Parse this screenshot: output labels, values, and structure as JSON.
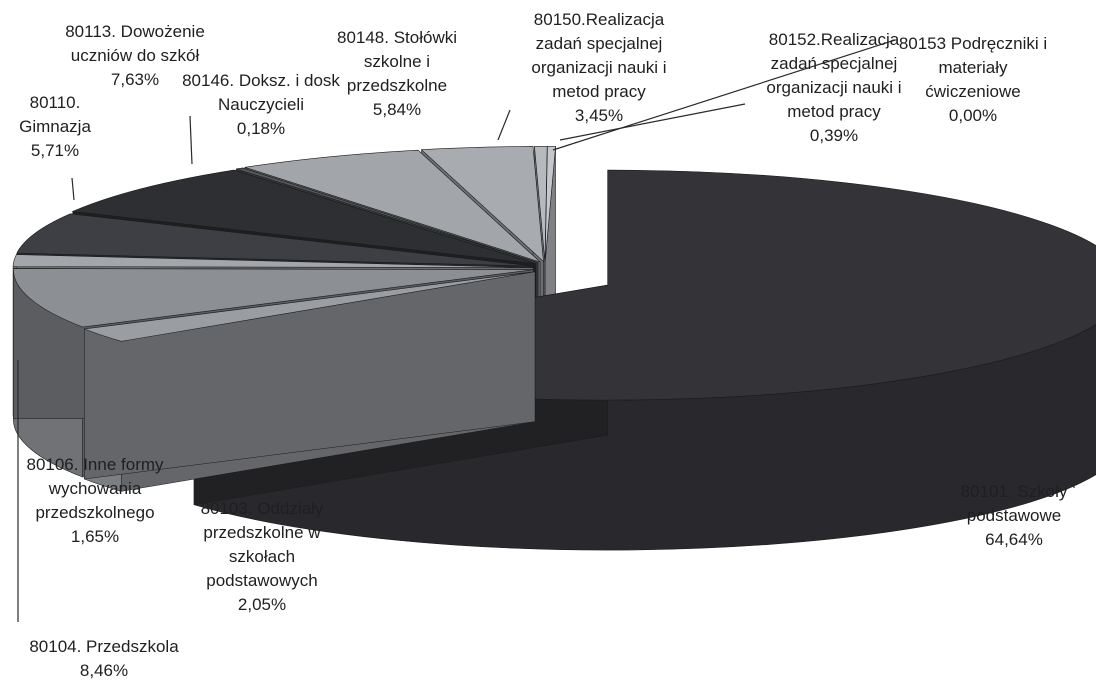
{
  "chart_data": {
    "type": "pie",
    "title": "",
    "slices": [
      {
        "label": "80101. Szkoły podstawowe",
        "value": 64.64,
        "value_text": "64,64%",
        "color": "#333338"
      },
      {
        "label": "80103. Oddziały przedszkolne w szkołach podstawowych",
        "value": 2.05,
        "value_text": "2,05%",
        "color": "#9a9da2"
      },
      {
        "label": "80104. Przedszkola",
        "value": 8.46,
        "value_text": "8,46%",
        "color": "#8c8f94"
      },
      {
        "label": "80106. Inne formy wychowania przedszkolnego",
        "value": 1.65,
        "value_text": "1,65%",
        "color": "#a3a6ab"
      },
      {
        "label": "80110. Gimnazja",
        "value": 5.71,
        "value_text": "5,71%",
        "color": "#3e3f44"
      },
      {
        "label": "80113. Dowożenie uczniów do szkół",
        "value": 7.63,
        "value_text": "7,63%",
        "color": "#2e2f33"
      },
      {
        "label": "80146. Doksz. i dosk. Nauczycieli",
        "value": 0.18,
        "value_text": "0,18%",
        "color": "#55575c"
      },
      {
        "label": "80148. Stołówki szkolne i przedszkolne",
        "value": 5.84,
        "value_text": "5,84%",
        "color": "#a2a5aa"
      },
      {
        "label": "80150.Realizacja zadań specjalnej organizacji nauki i metod pracy",
        "value": 3.45,
        "value_text": "3,45%",
        "color": "#a8abb0"
      },
      {
        "label": "80152.Realizacja zadań specjalnej organizacji nauki i metod pracy",
        "value": 0.39,
        "value_text": "0,39%",
        "color": "#b6b9be"
      },
      {
        "label": "80153 Podręczniki i materiały ćwiczeniowe",
        "value": 0.0,
        "value_text": "0,00%",
        "color": "#c4c7cc"
      }
    ],
    "label_lines": [
      [
        "80101. Szkoły",
        "podstawowe",
        "64,64%"
      ],
      [
        "80103. Oddziały",
        "przedszkolne w",
        "szkołach",
        "podstawowych",
        "2,05%"
      ],
      [
        "80104. Przedszkola",
        "8,46%"
      ],
      [
        "80106. Inne formy",
        "wychowania",
        "przedszkolnego",
        "1,65%"
      ],
      [
        "80110.",
        "Gimnazja",
        "5,71%"
      ],
      [
        "80113. Dowożenie",
        "uczniów do szkół",
        "7,63%"
      ],
      [
        "80146. Doksz. i dosk",
        "Nauczycieli",
        "0,18%"
      ],
      [
        "80148. Stołówki",
        "szkolne i",
        "przedszkolne",
        "5,84%"
      ],
      [
        "80150.Realizacja",
        "zadań specjalnej",
        "organizacji nauki i",
        "metod pracy",
        "3,45%"
      ],
      [
        "80152.Realizacja",
        "zadań specjalnej",
        "organizacji nauki i",
        "metod pracy",
        "0,39%"
      ],
      [
        "80153 Podręczniki i",
        "materiały",
        "ćwiczeniowe",
        "0,00%"
      ]
    ]
  }
}
